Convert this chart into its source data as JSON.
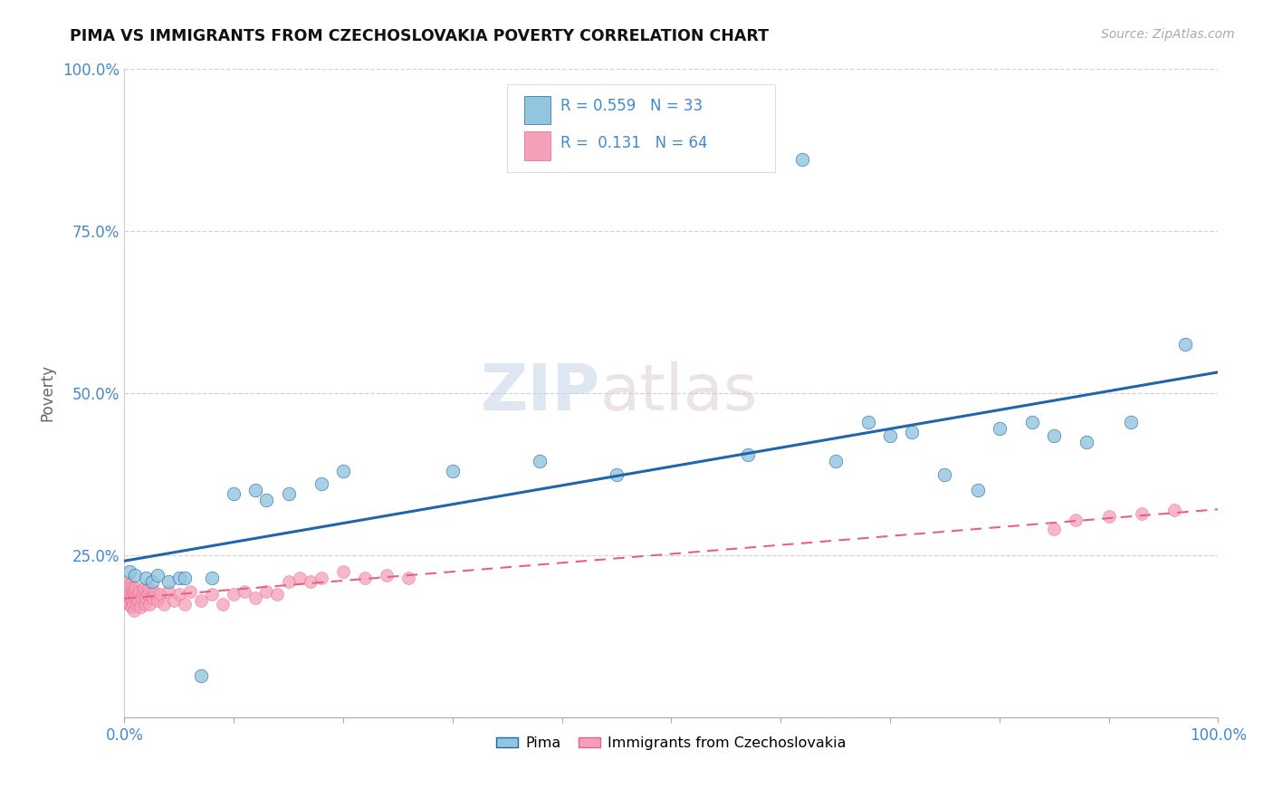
{
  "title": "PIMA VS IMMIGRANTS FROM CZECHOSLOVAKIA POVERTY CORRELATION CHART",
  "source_text": "Source: ZipAtlas.com",
  "ylabel": "Poverty",
  "r_pima": 0.559,
  "n_pima": 33,
  "r_czech": 0.131,
  "n_czech": 64,
  "color_pima": "#92c5de",
  "color_czech": "#f4a0b8",
  "color_pima_line": "#2166ac",
  "color_czech_line": "#e8608a",
  "legend_pima": "Pima",
  "legend_czech": "Immigrants from Czechoslovakia",
  "watermark_zip": "ZIP",
  "watermark_atlas": "atlas",
  "pima_x": [
    0.005,
    0.01,
    0.02,
    0.025,
    0.03,
    0.04,
    0.05,
    0.055,
    0.07,
    0.08,
    0.1,
    0.12,
    0.13,
    0.15,
    0.18,
    0.2,
    0.3,
    0.38,
    0.45,
    0.57,
    0.62,
    0.65,
    0.68,
    0.7,
    0.72,
    0.75,
    0.78,
    0.8,
    0.83,
    0.85,
    0.88,
    0.92,
    0.97
  ],
  "pima_y": [
    0.225,
    0.22,
    0.215,
    0.21,
    0.22,
    0.21,
    0.215,
    0.215,
    0.065,
    0.215,
    0.345,
    0.35,
    0.335,
    0.345,
    0.36,
    0.38,
    0.38,
    0.395,
    0.375,
    0.405,
    0.86,
    0.395,
    0.455,
    0.435,
    0.44,
    0.375,
    0.35,
    0.445,
    0.455,
    0.435,
    0.425,
    0.455,
    0.575
  ],
  "czech_x": [
    0.001,
    0.002,
    0.002,
    0.003,
    0.003,
    0.004,
    0.004,
    0.005,
    0.005,
    0.005,
    0.006,
    0.006,
    0.007,
    0.007,
    0.008,
    0.008,
    0.009,
    0.009,
    0.01,
    0.01,
    0.011,
    0.012,
    0.013,
    0.014,
    0.015,
    0.016,
    0.017,
    0.018,
    0.019,
    0.02,
    0.021,
    0.022,
    0.023,
    0.025,
    0.027,
    0.03,
    0.033,
    0.036,
    0.04,
    0.045,
    0.05,
    0.055,
    0.06,
    0.07,
    0.08,
    0.09,
    0.1,
    0.11,
    0.12,
    0.13,
    0.14,
    0.15,
    0.16,
    0.17,
    0.18,
    0.2,
    0.22,
    0.24,
    0.26,
    0.85,
    0.87,
    0.9,
    0.93,
    0.96
  ],
  "czech_y": [
    0.185,
    0.2,
    0.195,
    0.21,
    0.185,
    0.175,
    0.2,
    0.175,
    0.19,
    0.205,
    0.17,
    0.185,
    0.18,
    0.2,
    0.175,
    0.195,
    0.165,
    0.19,
    0.185,
    0.2,
    0.175,
    0.19,
    0.18,
    0.195,
    0.17,
    0.185,
    0.195,
    0.2,
    0.175,
    0.185,
    0.19,
    0.2,
    0.175,
    0.185,
    0.195,
    0.18,
    0.19,
    0.175,
    0.195,
    0.18,
    0.19,
    0.175,
    0.195,
    0.18,
    0.19,
    0.175,
    0.19,
    0.195,
    0.185,
    0.195,
    0.19,
    0.21,
    0.215,
    0.21,
    0.215,
    0.225,
    0.215,
    0.22,
    0.215,
    0.29,
    0.305,
    0.31,
    0.315,
    0.32
  ],
  "xlim": [
    0,
    1.0
  ],
  "ylim": [
    0,
    1.0
  ],
  "xtick_positions": [
    0.0,
    0.1,
    0.2,
    0.3,
    0.4,
    0.5,
    0.6,
    0.7,
    0.8,
    0.9,
    1.0
  ],
  "ytick_positions": [
    0.0,
    0.25,
    0.5,
    0.75,
    1.0
  ],
  "ytick_labels": [
    "",
    "25.0%",
    "50.0%",
    "75.0%",
    "100.0%"
  ],
  "grid_color": "#ccccdd",
  "grid_linestyle": "--",
  "tick_color": "#4488cc"
}
